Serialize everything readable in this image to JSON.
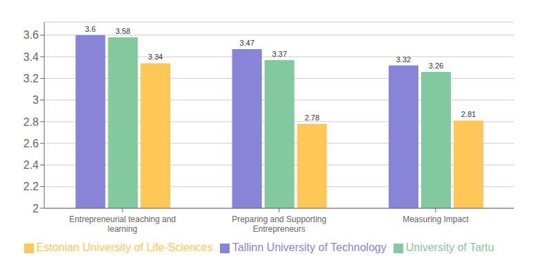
{
  "chart_data": {
    "type": "bar",
    "categories": [
      "Entrepreneurial teaching and\nlearning",
      "Preparing and Supporting\nEntrepreneurs",
      "Measuring Impact"
    ],
    "series": [
      {
        "name": "Tallinn University of Technology",
        "values": [
          3.6,
          3.47,
          3.32
        ]
      },
      {
        "name": "University of Tartu",
        "values": [
          3.58,
          3.37,
          3.26
        ]
      },
      {
        "name": "Estonian University of Life-Sciences",
        "values": [
          3.34,
          2.78,
          2.81
        ]
      }
    ],
    "ylim": [
      2,
      3.72
    ],
    "yticks": [
      2,
      2.2,
      2.4,
      2.6,
      2.8,
      3,
      3.2,
      3.4,
      3.6
    ],
    "grid": true,
    "legend": "bottom",
    "data_labels": true
  }
}
